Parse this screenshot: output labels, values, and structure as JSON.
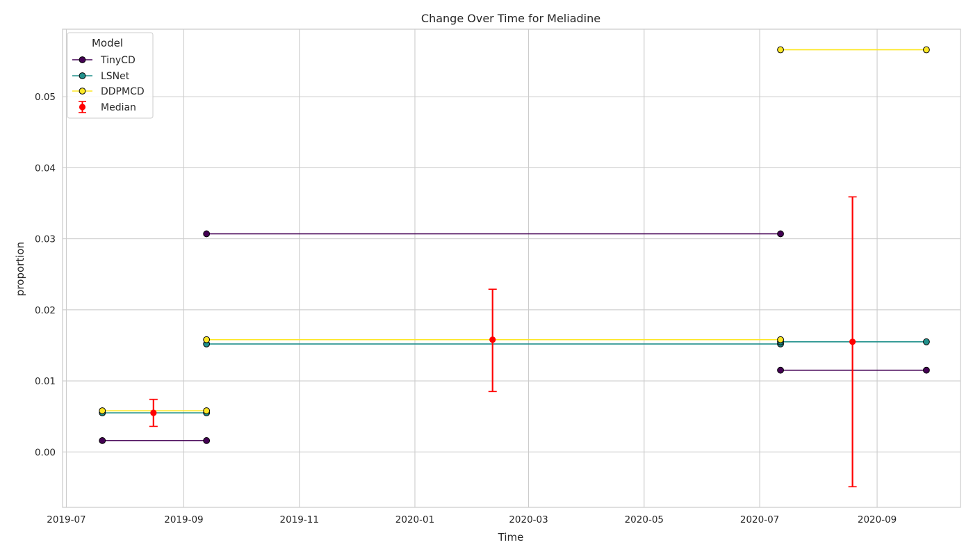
{
  "chart_data": {
    "type": "line",
    "title": "Change Over Time for Meliadine",
    "xlabel": "Time",
    "ylabel": "proportion",
    "x_ticks": [
      "2019-07-01",
      "2019-09-01",
      "2019-11-01",
      "2020-01-01",
      "2020-03-01",
      "2020-05-01",
      "2020-07-01",
      "2020-09-01"
    ],
    "x_tick_labels": [
      "2019-07",
      "2019-09",
      "2019-11",
      "2020-01",
      "2020-03",
      "2020-05",
      "2020-07",
      "2020-09"
    ],
    "xlim": [
      "2019-06-29",
      "2020-10-15"
    ],
    "y_ticks": [
      0.0,
      0.01,
      0.02,
      0.03,
      0.04,
      0.05
    ],
    "y_tick_labels": [
      "0.00",
      "0.01",
      "0.02",
      "0.03",
      "0.04",
      "0.05"
    ],
    "ylim": [
      -0.0078,
      0.0595
    ],
    "grid": true,
    "legend": {
      "title": "Model",
      "placement": "top-left"
    },
    "series": [
      {
        "name": "TinyCD",
        "color": "#440154",
        "segments": [
          [
            [
              "2019-07-20",
              0.0016
            ],
            [
              "2019-09-13",
              0.0016
            ]
          ],
          [
            [
              "2019-09-13",
              0.0307
            ],
            [
              "2020-07-12",
              0.0307
            ]
          ],
          [
            [
              "2020-07-12",
              0.0115
            ],
            [
              "2020-09-27",
              0.0115
            ]
          ]
        ]
      },
      {
        "name": "LSNet",
        "color": "#21918c",
        "segments": [
          [
            [
              "2019-07-20",
              0.0055
            ],
            [
              "2019-09-13",
              0.0055
            ]
          ],
          [
            [
              "2019-09-13",
              0.0152
            ],
            [
              "2020-07-12",
              0.0152
            ]
          ],
          [
            [
              "2020-07-12",
              0.0155
            ],
            [
              "2020-09-27",
              0.0155
            ]
          ]
        ]
      },
      {
        "name": "DDPMCD",
        "color": "#fde725",
        "segments": [
          [
            [
              "2019-07-20",
              0.0058
            ],
            [
              "2019-09-13",
              0.0058
            ]
          ],
          [
            [
              "2019-09-13",
              0.0158
            ],
            [
              "2020-07-12",
              0.0158
            ]
          ],
          [
            [
              "2020-07-12",
              0.0566
            ],
            [
              "2020-09-27",
              0.0566
            ]
          ]
        ]
      }
    ],
    "median": {
      "name": "Median",
      "color": "#ff0000",
      "points": [
        {
          "x": "2019-08-16",
          "y": 0.0055,
          "ylow": 0.0036,
          "yhigh": 0.0074
        },
        {
          "x": "2020-02-11",
          "y": 0.0158,
          "ylow": 0.0085,
          "yhigh": 0.0229
        },
        {
          "x": "2020-08-19",
          "y": 0.0155,
          "ylow": -0.0049,
          "yhigh": 0.0359
        }
      ]
    }
  }
}
